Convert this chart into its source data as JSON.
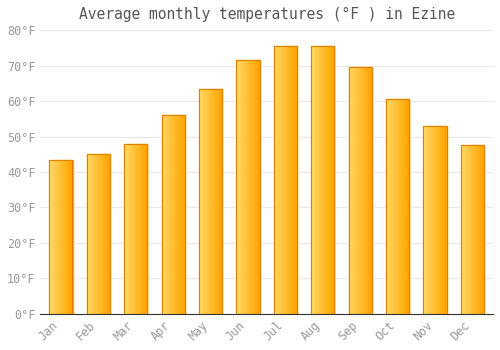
{
  "title": "Average monthly temperatures (°F ) in Ezine",
  "months": [
    "Jan",
    "Feb",
    "Mar",
    "Apr",
    "May",
    "Jun",
    "Jul",
    "Aug",
    "Sep",
    "Oct",
    "Nov",
    "Dec"
  ],
  "values": [
    43.5,
    45.0,
    48.0,
    56.0,
    63.5,
    71.5,
    75.5,
    75.5,
    69.5,
    60.5,
    53.0,
    47.5
  ],
  "bar_color_light": "#FFD966",
  "bar_color_main": "#FFA500",
  "bar_color_dark": "#E08000",
  "ylim": [
    0,
    80
  ],
  "yticks": [
    0,
    10,
    20,
    30,
    40,
    50,
    60,
    70,
    80
  ],
  "ytick_labels": [
    "0°F",
    "10°F",
    "20°F",
    "30°F",
    "40°F",
    "50°F",
    "60°F",
    "70°F",
    "80°F"
  ],
  "background_color": "#ffffff",
  "plot_bg_color": "#ffffff",
  "grid_color": "#e8e8e8",
  "title_fontsize": 10.5,
  "tick_fontsize": 8.5,
  "title_color": "#555555",
  "tick_color": "#999999",
  "spine_color": "#333333"
}
